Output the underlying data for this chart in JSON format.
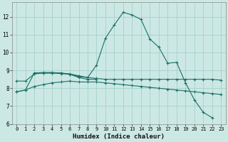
{
  "xlabel": "Humidex (Indice chaleur)",
  "bg_color": "#cce8e4",
  "grid_color": "#aad4cc",
  "line_color": "#1a7068",
  "xlim": [
    -0.5,
    23.5
  ],
  "ylim": [
    6.0,
    12.8
  ],
  "xticks": [
    0,
    1,
    2,
    3,
    4,
    5,
    6,
    7,
    8,
    9,
    10,
    11,
    12,
    13,
    14,
    15,
    16,
    17,
    18,
    19,
    20,
    21,
    22,
    23
  ],
  "yticks": [
    6,
    7,
    8,
    9,
    10,
    11,
    12
  ],
  "line1_x": [
    0,
    1,
    2,
    3,
    4,
    5,
    6,
    7,
    8,
    9,
    10,
    11,
    12,
    13,
    14,
    15,
    16,
    17,
    18,
    19,
    20,
    21,
    22
  ],
  "line1_y": [
    7.8,
    7.9,
    8.85,
    8.85,
    8.85,
    8.85,
    8.8,
    8.7,
    8.6,
    9.3,
    10.8,
    11.55,
    12.25,
    12.1,
    11.85,
    10.75,
    10.3,
    9.4,
    9.45,
    8.3,
    7.35,
    6.65,
    6.35
  ],
  "line2_x": [
    0,
    1,
    2,
    3,
    4,
    5,
    6,
    7,
    8,
    9,
    10,
    11,
    12,
    13,
    14,
    15,
    16,
    17,
    18,
    19,
    20,
    21,
    22,
    23
  ],
  "line2_y": [
    8.4,
    8.4,
    8.8,
    8.85,
    8.85,
    8.82,
    8.78,
    8.65,
    8.6,
    8.55,
    8.5,
    8.5,
    8.5,
    8.5,
    8.5,
    8.5,
    8.5,
    8.5,
    8.5,
    8.5,
    8.5,
    8.5,
    8.5,
    8.45
  ],
  "line3_x": [
    0,
    1,
    2,
    3,
    4,
    5,
    6,
    7,
    8,
    9,
    10,
    11,
    12,
    13,
    14,
    15,
    16,
    17,
    18,
    19,
    20,
    21,
    22,
    23
  ],
  "line3_y": [
    7.8,
    7.9,
    8.1,
    8.2,
    8.3,
    8.35,
    8.4,
    8.35,
    8.35,
    8.35,
    8.3,
    8.25,
    8.2,
    8.15,
    8.1,
    8.05,
    8.0,
    7.95,
    7.9,
    7.85,
    7.8,
    7.75,
    7.7,
    7.65
  ],
  "line4_x": [
    2,
    3,
    4,
    5,
    6,
    7,
    8,
    9
  ],
  "line4_y": [
    8.85,
    8.88,
    8.88,
    8.85,
    8.78,
    8.6,
    8.5,
    8.5
  ]
}
